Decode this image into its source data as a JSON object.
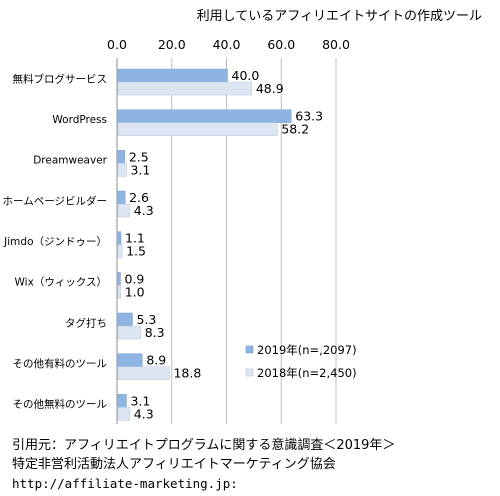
{
  "chart_data": {
    "type": "bar",
    "orientation": "horizontal",
    "title": "利用しているアフィリエイトサイトの作成ツール",
    "xlim": [
      0,
      80
    ],
    "ticks": [
      "0.0",
      "20.0",
      "40.0",
      "60.0",
      "80.0"
    ],
    "grid": true,
    "legend_position": "bottom-right",
    "categories": [
      "無料ブログサービス",
      "WordPress",
      "Dreamweaver",
      "ホームページビルダー",
      "Jimdo（ジンドゥー）",
      "Wix（ウィックス）",
      "タグ打ち",
      "その他有料のツール",
      "その他無料のツール"
    ],
    "series": [
      {
        "name": "2019年(n=,2097)",
        "color": "#8eb4e3",
        "values": [
          40.0,
          63.3,
          2.5,
          2.6,
          1.1,
          0.9,
          5.3,
          8.9,
          3.1
        ],
        "labels": [
          "40.0",
          "63.3",
          "2.5",
          "2.6",
          "1.1",
          "0.9",
          "5.3",
          "8.9",
          "3.1"
        ]
      },
      {
        "name": "2018年(n=2,450)",
        "color": "#dce6f2",
        "values": [
          48.9,
          58.2,
          3.1,
          4.3,
          1.5,
          1.0,
          8.3,
          18.8,
          4.3
        ],
        "labels": [
          "48.9",
          "58.2",
          "3.1",
          "4.3",
          "1.5",
          "1.0",
          "8.3",
          "18.8",
          "4.3"
        ]
      }
    ]
  },
  "source": {
    "line1": "引用元：アフィリエイトプログラムに関する意識調査＜2019年＞",
    "line2": "特定非営利活動法人アフィリエイトマーケティング協会",
    "line3": "http://affiliate-marketing.jp:"
  }
}
